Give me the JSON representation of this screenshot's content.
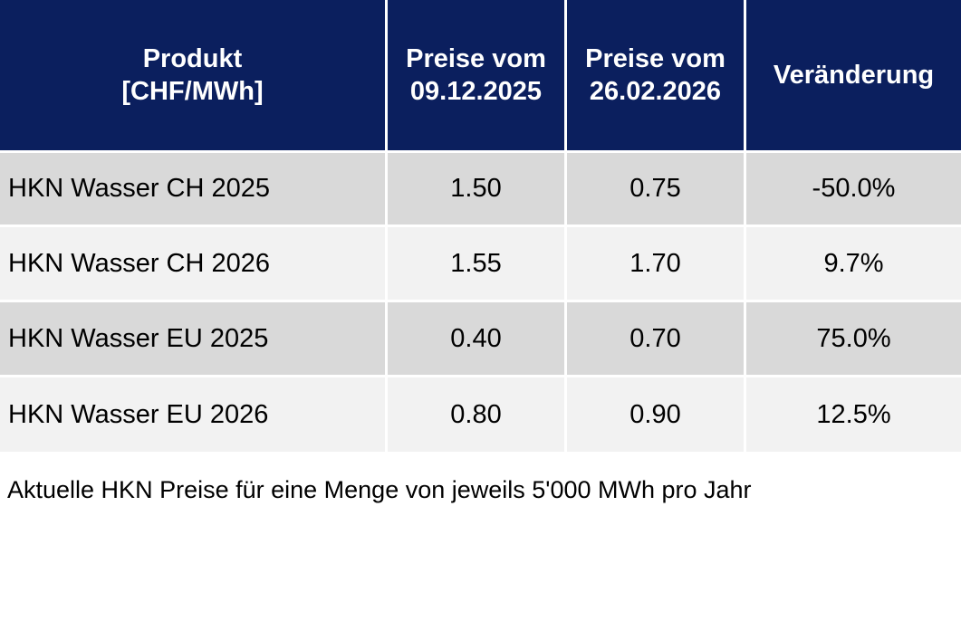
{
  "table": {
    "header": [
      [
        "Produkt",
        "[CHF/MWh]"
      ],
      [
        "Preise vom",
        "09.12.2025"
      ],
      [
        "Preise vom",
        "26.02.2026"
      ],
      [
        "Veränderung"
      ]
    ],
    "rows": [
      [
        "HKN Wasser CH 2025",
        "1.50",
        "0.75",
        "-50.0%"
      ],
      [
        "HKN Wasser CH 2026",
        "1.55",
        "1.70",
        "9.7%"
      ],
      [
        "HKN Wasser EU 2025",
        "0.40",
        "0.70",
        "75.0%"
      ],
      [
        "HKN Wasser EU 2026",
        "0.80",
        "0.90",
        "12.5%"
      ]
    ]
  },
  "caption": "Aktuelle HKN Preise für eine Menge von jeweils 5'000 MWh pro Jahr"
}
